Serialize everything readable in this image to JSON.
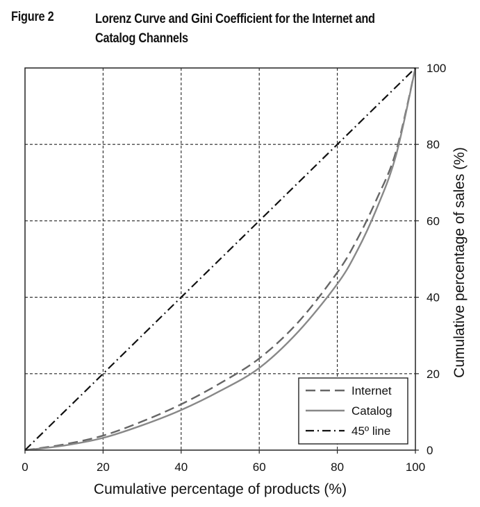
{
  "figure": {
    "label": "Figure 2",
    "title_line1": "Lorenz Curve and Gini Coefficient for the Internet and",
    "title_line2": "Catalog Channels"
  },
  "chart_data": {
    "type": "line",
    "xlabel": "Cumulative percentage of products (%)",
    "ylabel": "Cumulative percentage of sales (%)",
    "xlim": [
      0,
      100
    ],
    "ylim": [
      0,
      100
    ],
    "x_ticks": [
      "0",
      "20",
      "40",
      "60",
      "80",
      "100"
    ],
    "y_ticks": [
      "0",
      "20",
      "40",
      "60",
      "80",
      "100"
    ],
    "y_axis_side": "right",
    "grid": true,
    "legend_position": "bottom-right",
    "series": [
      {
        "name": "Internet",
        "style": "dashed",
        "color": "#666666",
        "x": [
          0,
          10,
          20,
          30,
          40,
          50,
          60,
          70,
          80,
          85,
          90,
          95,
          100
        ],
        "y": [
          0,
          1.5,
          3.8,
          7.5,
          12,
          17.5,
          24,
          33.5,
          46.5,
          55,
          65.5,
          78,
          100
        ]
      },
      {
        "name": "Catalog",
        "style": "solid",
        "color": "#888888",
        "x": [
          0,
          10,
          20,
          30,
          40,
          50,
          60,
          70,
          80,
          85,
          90,
          95,
          100
        ],
        "y": [
          0,
          1.2,
          3.2,
          6.5,
          10.5,
          15.5,
          21.5,
          31,
          43.5,
          52,
          63,
          77,
          100
        ]
      },
      {
        "name": "45º line",
        "style": "dashdot",
        "color": "#111111",
        "x": [
          0,
          100
        ],
        "y": [
          0,
          100
        ]
      }
    ]
  }
}
